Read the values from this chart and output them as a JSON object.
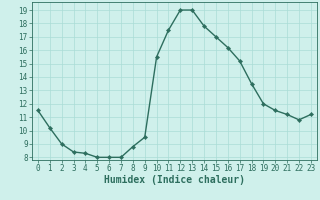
{
  "x": [
    0,
    1,
    2,
    3,
    4,
    5,
    6,
    7,
    8,
    9,
    10,
    11,
    12,
    13,
    14,
    15,
    16,
    17,
    18,
    19,
    20,
    21,
    22,
    23
  ],
  "y": [
    11.5,
    10.2,
    9.0,
    8.4,
    8.3,
    8.0,
    8.0,
    8.0,
    8.8,
    9.5,
    15.5,
    17.5,
    19.0,
    19.0,
    17.8,
    17.0,
    16.2,
    15.2,
    13.5,
    12.0,
    11.5,
    11.2,
    10.8,
    11.2
  ],
  "line_color": "#2d6e5e",
  "marker": "D",
  "marker_size": 2.2,
  "bg_color": "#cff0eb",
  "grid_color": "#aaddd6",
  "xlabel": "Humidex (Indice chaleur)",
  "xlim": [
    -0.5,
    23.5
  ],
  "ylim": [
    7.8,
    19.6
  ],
  "yticks": [
    8,
    9,
    10,
    11,
    12,
    13,
    14,
    15,
    16,
    17,
    18,
    19
  ],
  "xticks": [
    0,
    1,
    2,
    3,
    4,
    5,
    6,
    7,
    8,
    9,
    10,
    11,
    12,
    13,
    14,
    15,
    16,
    17,
    18,
    19,
    20,
    21,
    22,
    23
  ],
  "tick_fontsize": 5.5,
  "xlabel_fontsize": 7.0,
  "line_width": 1.0
}
